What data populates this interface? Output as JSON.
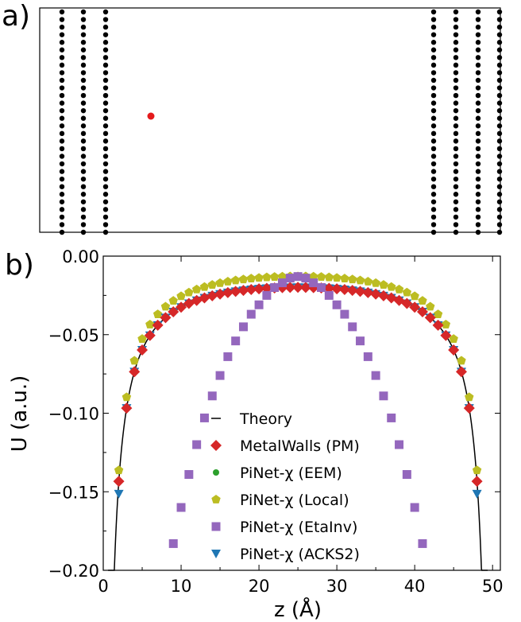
{
  "panel_labels": {
    "a": "a)",
    "b": "b)"
  },
  "panel_a": {
    "type": "scatter",
    "walls_left_columns": 3,
    "walls_right_columns": 4,
    "atoms_per_column": 30,
    "wall_atom_color": "#000000",
    "ion_color": "#e41a1c"
  },
  "chart_data": {
    "type": "scatter",
    "xlabel": "z (Å)",
    "ylabel": "U (a.u.)",
    "xlim": [
      0,
      51
    ],
    "ylim": [
      -0.2,
      0.0
    ],
    "xticks": [
      "0",
      "10",
      "20",
      "30",
      "40",
      "50"
    ],
    "xtick_values": [
      0,
      10,
      20,
      30,
      40,
      50
    ],
    "yticks": [
      "0.00",
      "−0.05",
      "−0.10",
      "−0.15",
      "−0.20"
    ],
    "ytick_values": [
      0.0,
      -0.05,
      -0.1,
      -0.15,
      -0.2
    ],
    "legend_placement": "bottom-center",
    "series": [
      {
        "name": "Theory",
        "kind": "line",
        "color": "#000000"
      },
      {
        "name": "MetalWalls (PM)",
        "kind": "diamond",
        "color": "#d62728",
        "offset": 0.0,
        "x_start": 1,
        "x_end": 49
      },
      {
        "name": "PiNet-χ (EEM)",
        "kind": "circle",
        "color": "#2ca02c",
        "offset": 0.0,
        "x_start": 0.8,
        "x_end": 49.2
      },
      {
        "name": "PiNet-χ (Local)",
        "kind": "pentagon",
        "color": "#bcbd22",
        "offset": 0.007,
        "x_start": 1,
        "x_end": 49
      },
      {
        "name": "PiNet-χ (EtaInv)",
        "kind": "square",
        "color": "#9467bd",
        "x_start": 9,
        "x_end": 41,
        "x": [
          9,
          10,
          11,
          12,
          13,
          14,
          15,
          16,
          17,
          18,
          19,
          20,
          21,
          22,
          23,
          24,
          25,
          26,
          27,
          28,
          29,
          30,
          31,
          32,
          33,
          34,
          35,
          36,
          37,
          38,
          39,
          40,
          41
        ],
        "y": [
          -0.183,
          -0.16,
          -0.139,
          -0.12,
          -0.103,
          -0.089,
          -0.076,
          -0.064,
          -0.054,
          -0.045,
          -0.037,
          -0.031,
          -0.025,
          -0.02,
          -0.017,
          -0.014,
          -0.013,
          -0.014,
          -0.017,
          -0.02,
          -0.025,
          -0.031,
          -0.037,
          -0.045,
          -0.054,
          -0.064,
          -0.076,
          -0.089,
          -0.103,
          -0.12,
          -0.139,
          -0.16,
          -0.183
        ]
      },
      {
        "name": "PiNet-χ (ACKS2)",
        "kind": "triangle",
        "color": "#1f77b4",
        "offset": 0.0,
        "x_start": 0.8,
        "x_end": 49.2
      }
    ]
  }
}
